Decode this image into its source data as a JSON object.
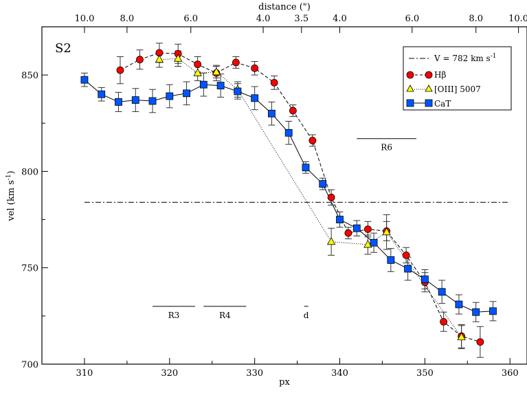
{
  "chart_data": {
    "type": "scatter",
    "panel_label": "S2",
    "xlabel": "px",
    "ylabel_main": "vel (km s",
    "ylabel_sup": "-1",
    "ylabel_close": ")",
    "top_axis_label": "distance (\")",
    "xlim": [
      305,
      362
    ],
    "ylim": [
      700,
      875
    ],
    "x_ticks": [
      310,
      320,
      330,
      340,
      350,
      360
    ],
    "x_tick_labels": [
      "310",
      "320",
      "330",
      "340",
      "350",
      "360"
    ],
    "y_ticks": [
      700,
      750,
      800,
      850
    ],
    "y_tick_labels": [
      "700",
      "750",
      "800",
      "850"
    ],
    "top_ticks": [
      {
        "px": 310.0,
        "label": "10.0"
      },
      {
        "px": 315.0,
        "label": "8.0"
      },
      {
        "px": 322.5,
        "label": "6.0"
      },
      {
        "px": 331.0,
        "label": "4.0"
      },
      {
        "px": 335.5,
        "label": "3.5"
      },
      {
        "px": 340.0,
        "label": "4.0"
      },
      {
        "px": 348.5,
        "label": "6.0"
      },
      {
        "px": 356.0,
        "label": "8.0"
      },
      {
        "px": 361.0,
        "label": "10.0"
      }
    ],
    "systemic": {
      "value": 782,
      "y": 784,
      "x_range": [
        310,
        360
      ],
      "label_main": "V = 782 km s",
      "label_sup": "-1"
    },
    "regions": [
      {
        "name": "R3",
        "x_range": [
          318,
          323
        ],
        "y": 730
      },
      {
        "name": "R4",
        "x_range": [
          324,
          329
        ],
        "y": 730
      },
      {
        "name": "d",
        "x_range": [
          335.8,
          336.3
        ],
        "y": 730
      },
      {
        "name": "R6",
        "x_range": [
          342,
          349
        ],
        "y": 817
      }
    ],
    "series": [
      {
        "name": "Hβ",
        "name_main": "H",
        "name_greek": "β",
        "color": "#ff0000",
        "marker": "circle",
        "line": "dashed",
        "points": [
          {
            "x": 314.2,
            "y": 852.5,
            "err": 7
          },
          {
            "x": 316.5,
            "y": 858,
            "err": 5
          },
          {
            "x": 318.8,
            "y": 861.5,
            "err": 5
          },
          {
            "x": 321,
            "y": 861,
            "err": 5
          },
          {
            "x": 323.3,
            "y": 855.5,
            "err": 4
          },
          {
            "x": 325.5,
            "y": 851,
            "err": 4
          },
          {
            "x": 327.8,
            "y": 856.5,
            "err": 3
          },
          {
            "x": 330,
            "y": 853.5,
            "err": 3.5
          },
          {
            "x": 332.3,
            "y": 846,
            "err": 3.5
          },
          {
            "x": 334.5,
            "y": 831.5,
            "err": 3
          },
          {
            "x": 336.8,
            "y": 816,
            "err": 3
          },
          {
            "x": 339,
            "y": 786.5,
            "err": 4
          },
          {
            "x": 341,
            "y": 768,
            "err": 3
          },
          {
            "x": 343.3,
            "y": 770,
            "err": 4
          },
          {
            "x": 345.5,
            "y": 769,
            "err": 5
          },
          {
            "x": 347.8,
            "y": 756.5,
            "err": 4
          },
          {
            "x": 350,
            "y": 742.5,
            "err": 5
          },
          {
            "x": 352.2,
            "y": 722,
            "err": 5
          },
          {
            "x": 354.3,
            "y": 714.5,
            "err": 6
          },
          {
            "x": 356.5,
            "y": 711.5,
            "err": 8
          }
        ]
      },
      {
        "name": "[OIII] 5007",
        "color": "#ffff00",
        "marker": "triangle",
        "line": "dotted",
        "points": [
          {
            "x": 318.8,
            "y": 858,
            "err": 4
          },
          {
            "x": 321,
            "y": 858.5,
            "err": 4
          },
          {
            "x": 323.3,
            "y": 851,
            "err": 4
          },
          {
            "x": 325.5,
            "y": 851.5,
            "err": 3
          },
          {
            "x": 328,
            "y": 842.5,
            "err": 4
          },
          {
            "x": 339,
            "y": 763.5,
            "err": 7
          },
          {
            "x": 343.3,
            "y": 762,
            "err": 5
          },
          {
            "x": 345.5,
            "y": 768.5,
            "err": 9
          },
          {
            "x": 354.3,
            "y": 714,
            "err": 6
          }
        ]
      },
      {
        "name": "CaT",
        "color": "#0055ff",
        "marker": "square",
        "line": "solid",
        "points": [
          {
            "x": 310,
            "y": 847.5,
            "err": 3.5
          },
          {
            "x": 312,
            "y": 840,
            "err": 3.5
          },
          {
            "x": 314,
            "y": 836,
            "err": 5
          },
          {
            "x": 316,
            "y": 837,
            "err": 6
          },
          {
            "x": 318,
            "y": 836.5,
            "err": 6
          },
          {
            "x": 320,
            "y": 839,
            "err": 6
          },
          {
            "x": 322,
            "y": 840.5,
            "err": 6
          },
          {
            "x": 324,
            "y": 845,
            "err": 6
          },
          {
            "x": 326,
            "y": 844.5,
            "err": 6
          },
          {
            "x": 328,
            "y": 841.5,
            "err": 4
          },
          {
            "x": 330,
            "y": 838,
            "err": 6
          },
          {
            "x": 332,
            "y": 830,
            "err": 6
          },
          {
            "x": 334,
            "y": 820,
            "err": 6
          },
          {
            "x": 336,
            "y": 802,
            "err": 3
          },
          {
            "x": 338,
            "y": 793.5,
            "err": 3
          },
          {
            "x": 340,
            "y": 775,
            "err": 4
          },
          {
            "x": 342,
            "y": 770.5,
            "err": 4
          },
          {
            "x": 344,
            "y": 763,
            "err": 5
          },
          {
            "x": 346,
            "y": 754,
            "err": 6
          },
          {
            "x": 348,
            "y": 749.5,
            "err": 6
          },
          {
            "x": 350,
            "y": 744,
            "err": 5
          },
          {
            "x": 352,
            "y": 737.5,
            "err": 6
          },
          {
            "x": 354,
            "y": 731,
            "err": 5
          },
          {
            "x": 356,
            "y": 727,
            "err": 5
          },
          {
            "x": 358,
            "y": 727.5,
            "err": 5
          }
        ]
      }
    ]
  }
}
